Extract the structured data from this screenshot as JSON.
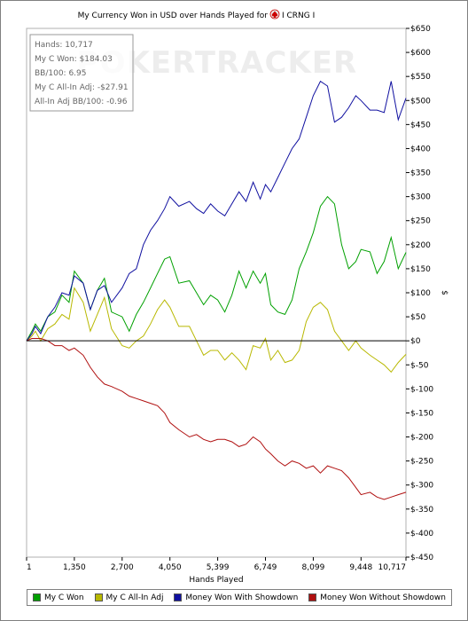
{
  "chart_data": {
    "type": "line",
    "title": "My Currency Won in USD over Hands Played for",
    "title_icon": "poker-suit-logo",
    "title_suffix": "I CRNG I",
    "xlabel": "Hands Played",
    "ylabel": "$",
    "xlim": [
      1,
      10717
    ],
    "ylim": [
      -450,
      650
    ],
    "x_ticks": [
      1,
      1350,
      2700,
      4050,
      5399,
      6749,
      8099,
      9448,
      10717
    ],
    "x_tick_labels": [
      "1",
      "1,350",
      "2,700",
      "4,050",
      "5,399",
      "6,749",
      "8,099",
      "9,448",
      "10,717"
    ],
    "y_ticks": [
      650,
      600,
      550,
      500,
      450,
      400,
      350,
      300,
      250,
      200,
      150,
      100,
      50,
      0,
      -50,
      -100,
      -150,
      -200,
      -250,
      -300,
      -350,
      -400,
      -450
    ],
    "y_tick_labels": [
      "$650",
      "$600",
      "$550",
      "$500",
      "$450",
      "$400",
      "$350",
      "$300",
      "$250",
      "$200",
      "$150",
      "$100",
      "$50",
      "$0",
      "$-50",
      "$-100",
      "$-150",
      "$-200",
      "$-250",
      "$-300",
      "$-350",
      "$-400",
      "$-450"
    ],
    "grid": false,
    "zero_line": true,
    "legend_position": "bottom",
    "watermark": "POKERTRACKER",
    "info_box": [
      "Hands: 10,717",
      "My C Won: $184.03",
      "BB/100: 6.95",
      "My C All-In Adj: -$27.91",
      "All-In Adj BB/100: -0.96"
    ],
    "series": [
      {
        "name": "My C Won",
        "color": "#00a000",
        "x": [
          1,
          150,
          250,
          400,
          600,
          800,
          1000,
          1200,
          1350,
          1600,
          1800,
          2000,
          2200,
          2400,
          2700,
          2900,
          3100,
          3300,
          3500,
          3700,
          3900,
          4050,
          4300,
          4600,
          4800,
          5000,
          5200,
          5399,
          5600,
          5800,
          6000,
          6200,
          6400,
          6600,
          6749,
          6900,
          7100,
          7300,
          7500,
          7700,
          7900,
          8099,
          8300,
          8500,
          8700,
          8900,
          9100,
          9300,
          9448,
          9700,
          9900,
          10100,
          10300,
          10500,
          10717
        ],
        "y": [
          0,
          20,
          35,
          20,
          50,
          60,
          95,
          80,
          145,
          120,
          65,
          105,
          130,
          60,
          50,
          20,
          55,
          80,
          110,
          140,
          170,
          175,
          120,
          125,
          100,
          75,
          95,
          85,
          60,
          95,
          145,
          110,
          145,
          120,
          140,
          75,
          60,
          55,
          85,
          150,
          185,
          225,
          280,
          300,
          285,
          200,
          150,
          165,
          190,
          185,
          140,
          165,
          215,
          150,
          184
        ]
      },
      {
        "name": "My C All-In Adj",
        "color": "#b8b800",
        "x": [
          1,
          150,
          250,
          400,
          600,
          800,
          1000,
          1200,
          1350,
          1600,
          1800,
          2000,
          2200,
          2400,
          2700,
          2900,
          3100,
          3300,
          3500,
          3700,
          3900,
          4050,
          4300,
          4600,
          4800,
          5000,
          5200,
          5399,
          5600,
          5800,
          6000,
          6200,
          6400,
          6600,
          6749,
          6900,
          7100,
          7300,
          7500,
          7700,
          7900,
          8099,
          8300,
          8500,
          8700,
          8900,
          9100,
          9300,
          9448,
          9700,
          9900,
          10100,
          10300,
          10500,
          10717
        ],
        "y": [
          0,
          10,
          20,
          0,
          25,
          35,
          55,
          45,
          110,
          80,
          20,
          55,
          90,
          25,
          -10,
          -15,
          0,
          10,
          35,
          65,
          85,
          70,
          30,
          30,
          0,
          -30,
          -20,
          -20,
          -40,
          -25,
          -40,
          -60,
          -10,
          -15,
          5,
          -40,
          -20,
          -45,
          -40,
          -20,
          40,
          70,
          80,
          65,
          20,
          0,
          -20,
          0,
          -15,
          -30,
          -40,
          -50,
          -65,
          -45,
          -28
        ]
      },
      {
        "name": "Money Won With Showdown",
        "color": "#1010a0",
        "x": [
          1,
          150,
          250,
          400,
          600,
          800,
          1000,
          1200,
          1350,
          1600,
          1800,
          2000,
          2200,
          2400,
          2700,
          2900,
          3100,
          3300,
          3500,
          3700,
          3900,
          4050,
          4300,
          4600,
          4800,
          5000,
          5200,
          5399,
          5600,
          5800,
          6000,
          6200,
          6400,
          6600,
          6749,
          6900,
          7100,
          7300,
          7500,
          7700,
          7900,
          8099,
          8300,
          8500,
          8700,
          8900,
          9100,
          9300,
          9448,
          9700,
          9900,
          10100,
          10300,
          10500,
          10717
        ],
        "y": [
          0,
          15,
          30,
          15,
          50,
          70,
          100,
          95,
          135,
          120,
          65,
          105,
          115,
          80,
          110,
          140,
          150,
          200,
          230,
          250,
          275,
          300,
          280,
          290,
          275,
          265,
          285,
          270,
          260,
          285,
          310,
          290,
          330,
          295,
          325,
          310,
          340,
          370,
          400,
          420,
          465,
          510,
          540,
          530,
          455,
          465,
          485,
          510,
          500,
          480,
          480,
          475,
          540,
          460,
          505
        ]
      },
      {
        "name": "Money Won Without Showdown",
        "color": "#b01010",
        "x": [
          1,
          150,
          250,
          400,
          600,
          800,
          1000,
          1200,
          1350,
          1600,
          1800,
          2000,
          2200,
          2400,
          2700,
          2900,
          3100,
          3300,
          3500,
          3700,
          3900,
          4050,
          4300,
          4600,
          4800,
          5000,
          5200,
          5399,
          5600,
          5800,
          6000,
          6200,
          6400,
          6600,
          6749,
          6900,
          7100,
          7300,
          7500,
          7700,
          7900,
          8099,
          8300,
          8500,
          8700,
          8900,
          9100,
          9300,
          9448,
          9700,
          9900,
          10100,
          10300,
          10500,
          10717
        ],
        "y": [
          0,
          5,
          5,
          5,
          0,
          -10,
          -10,
          -20,
          -15,
          -30,
          -55,
          -75,
          -90,
          -95,
          -105,
          -115,
          -120,
          -125,
          -130,
          -135,
          -150,
          -170,
          -185,
          -200,
          -195,
          -205,
          -210,
          -205,
          -205,
          -210,
          -220,
          -215,
          -200,
          -210,
          -225,
          -235,
          -250,
          -260,
          -250,
          -255,
          -265,
          -260,
          -275,
          -260,
          -265,
          -270,
          -285,
          -305,
          -320,
          -315,
          -325,
          -330,
          -325,
          -320,
          -315
        ]
      }
    ]
  }
}
